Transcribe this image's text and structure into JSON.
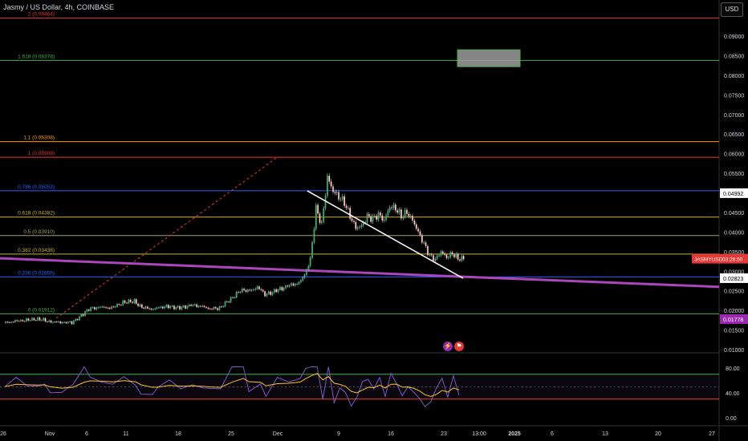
{
  "header": {
    "title": "Jasmy / US Dollar, 4h, COINBASE",
    "currency_button": "USD"
  },
  "icons": {
    "event_a": "lightning-icon",
    "event_b": "flag-icon"
  },
  "chart_data": {
    "type": "candlestick",
    "title": "Jasmy / US Dollar, 4h, COINBASE",
    "price_axis_ticks": [
      "0.09000",
      "0.08500",
      "0.08000",
      "0.07500",
      "0.07000",
      "0.06500",
      "0.06000",
      "0.05500",
      "0.05000",
      "0.04500",
      "0.04000",
      "0.03500",
      "0.03000",
      "0.02500",
      "0.02000",
      "0.01500",
      "0.01000"
    ],
    "price_range": [
      0.0092,
      0.0946
    ],
    "price_tags": [
      {
        "label": "0.04992",
        "value": 0.04992,
        "color": "#ffffff",
        "text_color": "#000000"
      },
      {
        "label": "JASMYUSD",
        "value": 0.0332,
        "color": "#e53935",
        "text_color": "#ffffff",
        "extra": "03:26:50"
      },
      {
        "label": "0.02823",
        "value": 0.02823,
        "color": "#ffffff",
        "text_color": "#000000"
      },
      {
        "label": "0.01778",
        "value": 0.01778,
        "color": "#9c27b0",
        "text_color": "#ffffff"
      }
    ],
    "time_axis_ticks": [
      "26",
      "Nov",
      "6",
      "11",
      "18",
      "25",
      "Dec",
      "9",
      "16",
      "23",
      "13:00",
      "2025",
      "6",
      "13",
      "20",
      "27"
    ],
    "time_axis_positions": [
      4,
      62,
      108,
      157,
      222,
      288,
      346,
      422,
      487,
      553,
      597,
      641,
      688,
      754,
      820,
      887
    ],
    "fib_levels": [
      {
        "label": "2 (0.09464)",
        "value": 0.09464,
        "color": "#e53935"
      },
      {
        "label": "1.618 (0.08378)",
        "value": 0.08378,
        "color": "#4caf50"
      },
      {
        "label": "1.1 (0.06308)",
        "value": 0.06308,
        "color": "#ff9800"
      },
      {
        "label": "1 (0.05908)",
        "value": 0.05908,
        "color": "#e53935"
      },
      {
        "label": "0.786 (0.05053)",
        "value": 0.05053,
        "color": "#2962ff"
      },
      {
        "label": "0.618 (0.04382)",
        "value": 0.04382,
        "color": "#d4b23c"
      },
      {
        "label": "0.5 (0.03910)",
        "value": 0.0391,
        "color": "#a5a26b"
      },
      {
        "label": "0.382 (0.03438)",
        "value": 0.03438,
        "color": "#c7b33c"
      },
      {
        "label": "0.236 (0.02855)",
        "value": 0.02855,
        "color": "#2962ff"
      },
      {
        "label": "0 (0.01912)",
        "value": 0.01912,
        "color": "#4caf50"
      }
    ],
    "candles": [
      {
        "t": 0,
        "c": 0.0168
      },
      {
        "t": 2,
        "c": 0.0172
      },
      {
        "t": 4,
        "c": 0.0175
      },
      {
        "t": 6,
        "c": 0.0178
      },
      {
        "t": 7,
        "c": 0.0176
      },
      {
        "t": 8,
        "c": 0.0171
      },
      {
        "t": 10,
        "c": 0.017
      },
      {
        "t": 12,
        "c": 0.0169
      },
      {
        "t": 14,
        "c": 0.019
      },
      {
        "t": 15,
        "c": 0.0204
      },
      {
        "t": 17,
        "c": 0.0208
      },
      {
        "t": 19,
        "c": 0.0206
      },
      {
        "t": 21,
        "c": 0.022
      },
      {
        "t": 23,
        "c": 0.0224
      },
      {
        "t": 24,
        "c": 0.021
      },
      {
        "t": 26,
        "c": 0.0203
      },
      {
        "t": 27,
        "c": 0.0207
      },
      {
        "t": 29,
        "c": 0.021
      },
      {
        "t": 31,
        "c": 0.0206
      },
      {
        "t": 33,
        "c": 0.0213
      },
      {
        "t": 35,
        "c": 0.021
      },
      {
        "t": 36,
        "c": 0.0204
      },
      {
        "t": 38,
        "c": 0.0206
      },
      {
        "t": 40,
        "c": 0.023
      },
      {
        "t": 42,
        "c": 0.0254
      },
      {
        "t": 43,
        "c": 0.025
      },
      {
        "t": 45,
        "c": 0.0258
      },
      {
        "t": 46,
        "c": 0.024
      },
      {
        "t": 48,
        "c": 0.025
      },
      {
        "t": 50,
        "c": 0.0262
      },
      {
        "t": 52,
        "c": 0.027
      },
      {
        "t": 53,
        "c": 0.029
      },
      {
        "t": 54,
        "c": 0.033
      },
      {
        "t": 55,
        "c": 0.046
      },
      {
        "t": 56,
        "c": 0.042
      },
      {
        "t": 57,
        "c": 0.054
      },
      {
        "t": 58,
        "c": 0.0505
      },
      {
        "t": 59,
        "c": 0.049
      },
      {
        "t": 60,
        "c": 0.0475
      },
      {
        "t": 61,
        "c": 0.044
      },
      {
        "t": 62,
        "c": 0.041
      },
      {
        "t": 63,
        "c": 0.0415
      },
      {
        "t": 64,
        "c": 0.044
      },
      {
        "t": 65,
        "c": 0.0435
      },
      {
        "t": 66,
        "c": 0.0445
      },
      {
        "t": 67,
        "c": 0.043
      },
      {
        "t": 68,
        "c": 0.0465
      },
      {
        "t": 69,
        "c": 0.046
      },
      {
        "t": 70,
        "c": 0.044
      },
      {
        "t": 71,
        "c": 0.045
      },
      {
        "t": 72,
        "c": 0.043
      },
      {
        "t": 73,
        "c": 0.04
      },
      {
        "t": 74,
        "c": 0.037
      },
      {
        "t": 75,
        "c": 0.034
      },
      {
        "t": 76,
        "c": 0.033
      },
      {
        "t": 77,
        "c": 0.035
      },
      {
        "t": 78,
        "c": 0.0335
      },
      {
        "t": 79,
        "c": 0.0345
      },
      {
        "t": 80,
        "c": 0.0332
      }
    ],
    "rsi": {
      "axis_ticks": [
        "80.00",
        "40.00",
        "0.00"
      ],
      "upper": 70,
      "lower": 30,
      "mid": 50
    }
  }
}
